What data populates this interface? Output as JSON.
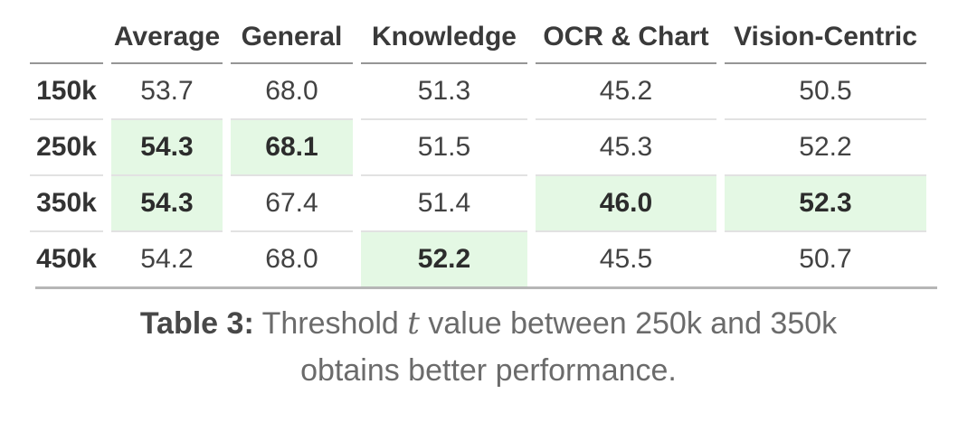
{
  "table": {
    "columns": [
      "",
      "Average",
      "General",
      "Knowledge",
      "OCR & Chart",
      "Vision-Centric"
    ],
    "rows": [
      {
        "label": "150k",
        "values": [
          {
            "v": "53.7",
            "hl": false
          },
          {
            "v": "68.0",
            "hl": false
          },
          {
            "v": "51.3",
            "hl": false
          },
          {
            "v": "45.2",
            "hl": false
          },
          {
            "v": "50.5",
            "hl": false
          }
        ]
      },
      {
        "label": "250k",
        "values": [
          {
            "v": "54.3",
            "hl": true
          },
          {
            "v": "68.1",
            "hl": true
          },
          {
            "v": "51.5",
            "hl": false
          },
          {
            "v": "45.3",
            "hl": false
          },
          {
            "v": "52.2",
            "hl": false
          }
        ]
      },
      {
        "label": "350k",
        "values": [
          {
            "v": "54.3",
            "hl": true
          },
          {
            "v": "67.4",
            "hl": false
          },
          {
            "v": "51.4",
            "hl": false
          },
          {
            "v": "46.0",
            "hl": true
          },
          {
            "v": "52.3",
            "hl": true
          }
        ]
      },
      {
        "label": "450k",
        "values": [
          {
            "v": "54.2",
            "hl": false
          },
          {
            "v": "68.0",
            "hl": false
          },
          {
            "v": "52.2",
            "hl": true
          },
          {
            "v": "45.5",
            "hl": false
          },
          {
            "v": "50.7",
            "hl": false
          }
        ]
      }
    ]
  },
  "caption": {
    "label": "Table 3:",
    "line1_pre": " Threshold ",
    "t": "t",
    "line1_post": " value between 250k and 350k",
    "line2": "obtains better performance."
  },
  "colors": {
    "highlight": "#e4f8e4",
    "header_rule": "#969696",
    "row_rule": "#e2e2e2",
    "bottom_rule": "#b6b6b6"
  }
}
